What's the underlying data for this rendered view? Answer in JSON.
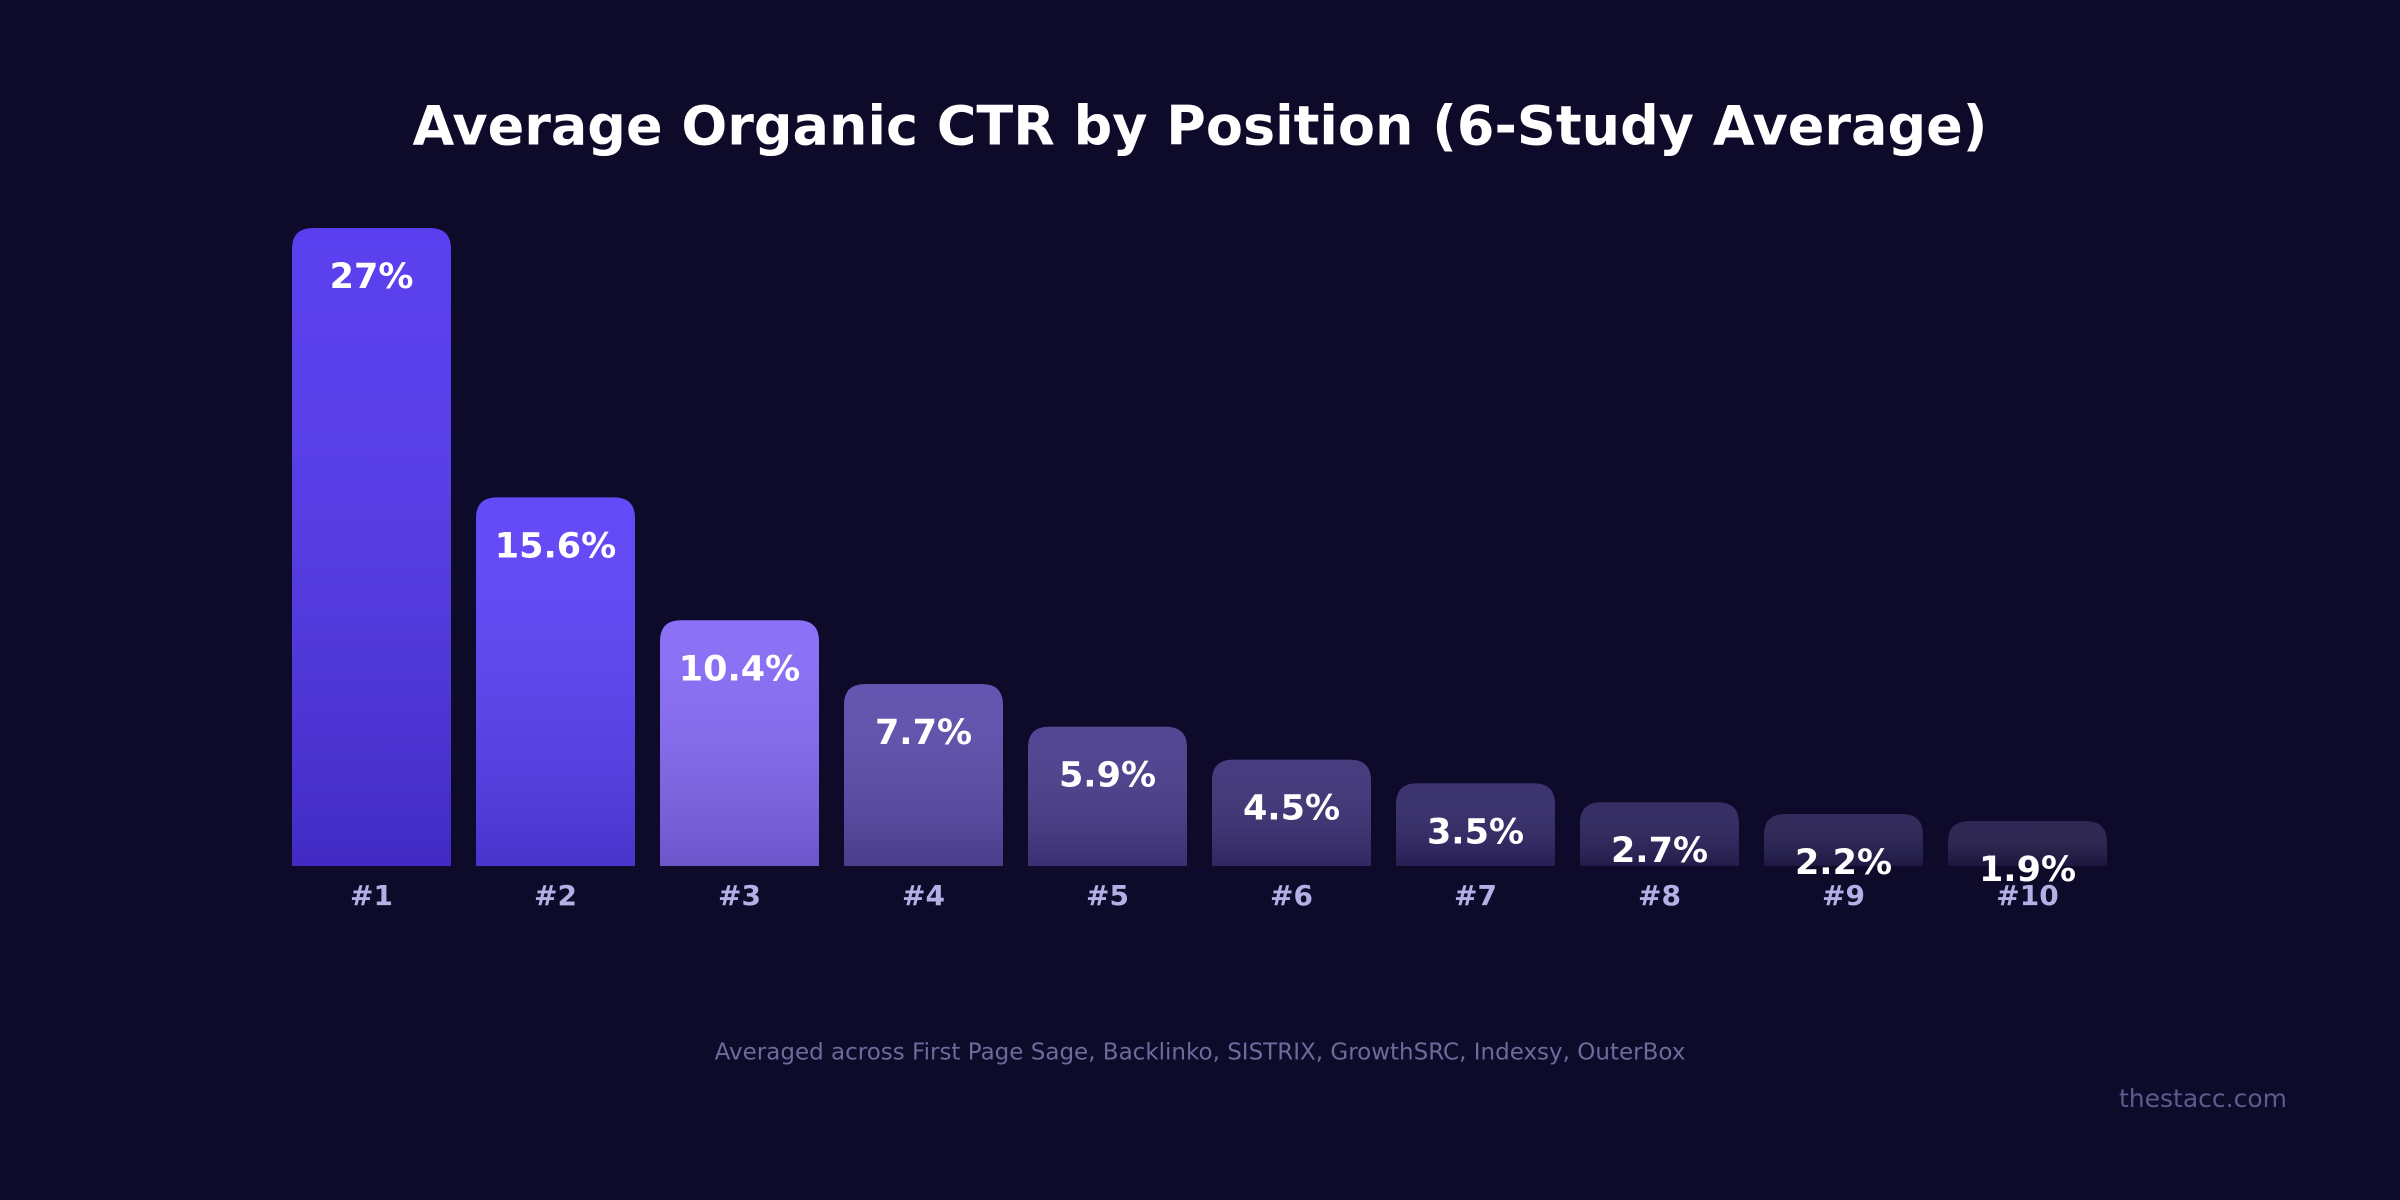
{
  "chart_data": {
    "type": "bar",
    "title": "Average Organic CTR by Position (6-Study Average)",
    "categories": [
      "#1",
      "#2",
      "#3",
      "#4",
      "#5",
      "#6",
      "#7",
      "#8",
      "#9",
      "#10"
    ],
    "values": [
      27,
      15.6,
      10.4,
      7.7,
      5.9,
      4.5,
      3.5,
      2.7,
      2.2,
      1.9
    ],
    "value_labels": [
      "27%",
      "15.6%",
      "10.4%",
      "7.7%",
      "5.9%",
      "4.5%",
      "3.5%",
      "2.7%",
      "2.2%",
      "1.9%"
    ],
    "colors": [
      "#5033ee",
      "#5a3ff8",
      "#8468f6",
      "#5a4aab",
      "#483a8c",
      "#3a2f76",
      "#2f2666",
      "#29215b",
      "#241d51",
      "#211a4a"
    ],
    "note": "Averaged across First Page Sage, Backlinko, SISTRIX, GrowthSRC, Indexsy, OuterBox",
    "watermark": "thestacc.com"
  }
}
